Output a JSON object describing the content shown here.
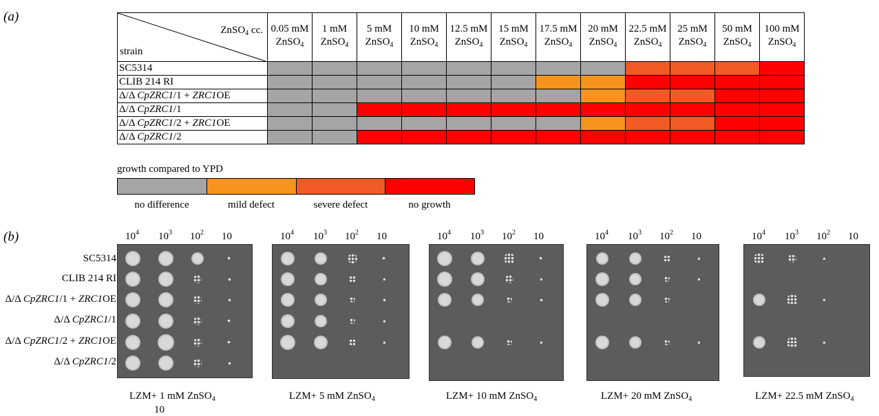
{
  "panel_a_label": "(a)",
  "panel_b_label": "(b)",
  "table": {
    "corner_top_prefix": "ZnSO",
    "corner_top_sub": "4",
    "corner_top_suffix": " cc.",
    "corner_bottom": "strain",
    "columns": [
      {
        "top": "0.05 mM",
        "bottom": "ZnSO",
        "sub": "4"
      },
      {
        "top": "1 mM",
        "bottom": "ZnSO",
        "sub": "4"
      },
      {
        "top": "5 mM",
        "bottom": "ZnSO",
        "sub": "4"
      },
      {
        "top": "10 mM",
        "bottom": "ZnSO",
        "sub": "4"
      },
      {
        "top": "12.5 mM",
        "bottom": "ZnSO",
        "sub": "4"
      },
      {
        "top": "15 mM",
        "bottom": "ZnSO",
        "sub": "4"
      },
      {
        "top": "17.5 mM",
        "bottom": "ZnSO",
        "sub": "4"
      },
      {
        "top": "20 mM",
        "bottom": "ZnSO",
        "sub": "4"
      },
      {
        "top": "22.5 mM",
        "bottom": "ZnSO",
        "sub": "4"
      },
      {
        "top": "25 mM",
        "bottom": "ZnSO",
        "sub": "4"
      },
      {
        "top": "50 mM",
        "bottom": "ZnSO",
        "sub": "4"
      },
      {
        "top": "100 mM",
        "bottom": "ZnSO",
        "sub": "4"
      }
    ],
    "rows": [
      {
        "prefix": "SC5314",
        "gene": "",
        "suffix": "",
        "extra_gene": "",
        "extra_suffix": "",
        "levels": [
          0,
          0,
          0,
          0,
          0,
          0,
          0,
          0,
          2,
          2,
          2,
          3
        ]
      },
      {
        "prefix": "CLIB 214 RI",
        "gene": "",
        "suffix": "",
        "extra_gene": "",
        "extra_suffix": "",
        "levels": [
          0,
          0,
          0,
          0,
          0,
          0,
          1,
          1,
          3,
          3,
          3,
          3
        ]
      },
      {
        "prefix": "Δ/Δ ",
        "gene": "CpZRC1",
        "suffix": "/1 + ",
        "extra_gene": "ZRC1",
        "extra_suffix": "OE",
        "levels": [
          0,
          0,
          0,
          0,
          0,
          0,
          0,
          1,
          2,
          2,
          3,
          3
        ]
      },
      {
        "prefix": "Δ/Δ ",
        "gene": "CpZRC1",
        "suffix": "/1",
        "extra_gene": "",
        "extra_suffix": "",
        "levels": [
          0,
          0,
          3,
          3,
          3,
          3,
          3,
          3,
          3,
          3,
          3,
          3
        ]
      },
      {
        "prefix": "Δ/Δ ",
        "gene": "CpZRC1",
        "suffix": "/2 + ",
        "extra_gene": "ZRC1",
        "extra_suffix": "OE",
        "levels": [
          0,
          0,
          0,
          0,
          0,
          0,
          0,
          1,
          2,
          2,
          3,
          3
        ]
      },
      {
        "prefix": "Δ/Δ ",
        "gene": "CpZRC1",
        "suffix": "/2",
        "extra_gene": "",
        "extra_suffix": "",
        "levels": [
          0,
          0,
          3,
          3,
          3,
          3,
          3,
          3,
          3,
          3,
          3,
          3
        ]
      }
    ]
  },
  "legend": {
    "title": "growth compared to YPD",
    "items": [
      {
        "label": "no difference",
        "color": "#a5a5a5"
      },
      {
        "label": "mild defect",
        "color": "#f7941d"
      },
      {
        "label": "severe defect",
        "color": "#f15a24"
      },
      {
        "label": "no growth",
        "color": "#ff0000"
      }
    ]
  },
  "panel_b": {
    "strains": [
      {
        "prefix": "SC5314",
        "gene": "",
        "suffix": "",
        "extra_gene": "",
        "extra_suffix": ""
      },
      {
        "prefix": "CLIB 214 RI",
        "gene": "",
        "suffix": "",
        "extra_gene": "",
        "extra_suffix": ""
      },
      {
        "prefix": "Δ/Δ ",
        "gene": "CpZRC1",
        "suffix": "/1 + ",
        "extra_gene": "ZRC1",
        "extra_suffix": "OE"
      },
      {
        "prefix": "Δ/Δ ",
        "gene": "CpZRC1",
        "suffix": "/1",
        "extra_gene": "",
        "extra_suffix": ""
      },
      {
        "prefix": "Δ/Δ ",
        "gene": "CpZRC1",
        "suffix": "/2 + ",
        "extra_gene": "ZRC1",
        "extra_suffix": "OE"
      },
      {
        "prefix": "Δ/Δ ",
        "gene": "CpZRC1",
        "suffix": "/2",
        "extra_gene": "",
        "extra_suffix": ""
      }
    ],
    "dilutions": [
      {
        "base": "10",
        "exp": "4"
      },
      {
        "base": "10",
        "exp": "3"
      },
      {
        "base": "10",
        "exp": "2"
      },
      {
        "base": "10",
        "exp": ""
      }
    ],
    "plates": [
      {
        "caption_prefix": "LZM+ 1 mM ZnSO",
        "caption_sub": "4"
      },
      {
        "caption_prefix": "LZM+ 5 mM ZnSO",
        "caption_sub": "4"
      },
      {
        "caption_prefix": "LZM+ 10 mM ZnSO",
        "caption_sub": "4"
      },
      {
        "caption_prefix": "LZM+ 20 mM ZnSO",
        "caption_sub": "4"
      },
      {
        "caption_prefix": "LZM+ 22.5 mM ZnSO",
        "caption_sub": "4"
      }
    ],
    "stray_label": "10"
  },
  "colors": {
    "level_0": "#a5a5a5",
    "level_1": "#f7941d",
    "level_2": "#f15a24",
    "level_3": "#ff0000",
    "plate_bg": "#5c5c5c"
  }
}
